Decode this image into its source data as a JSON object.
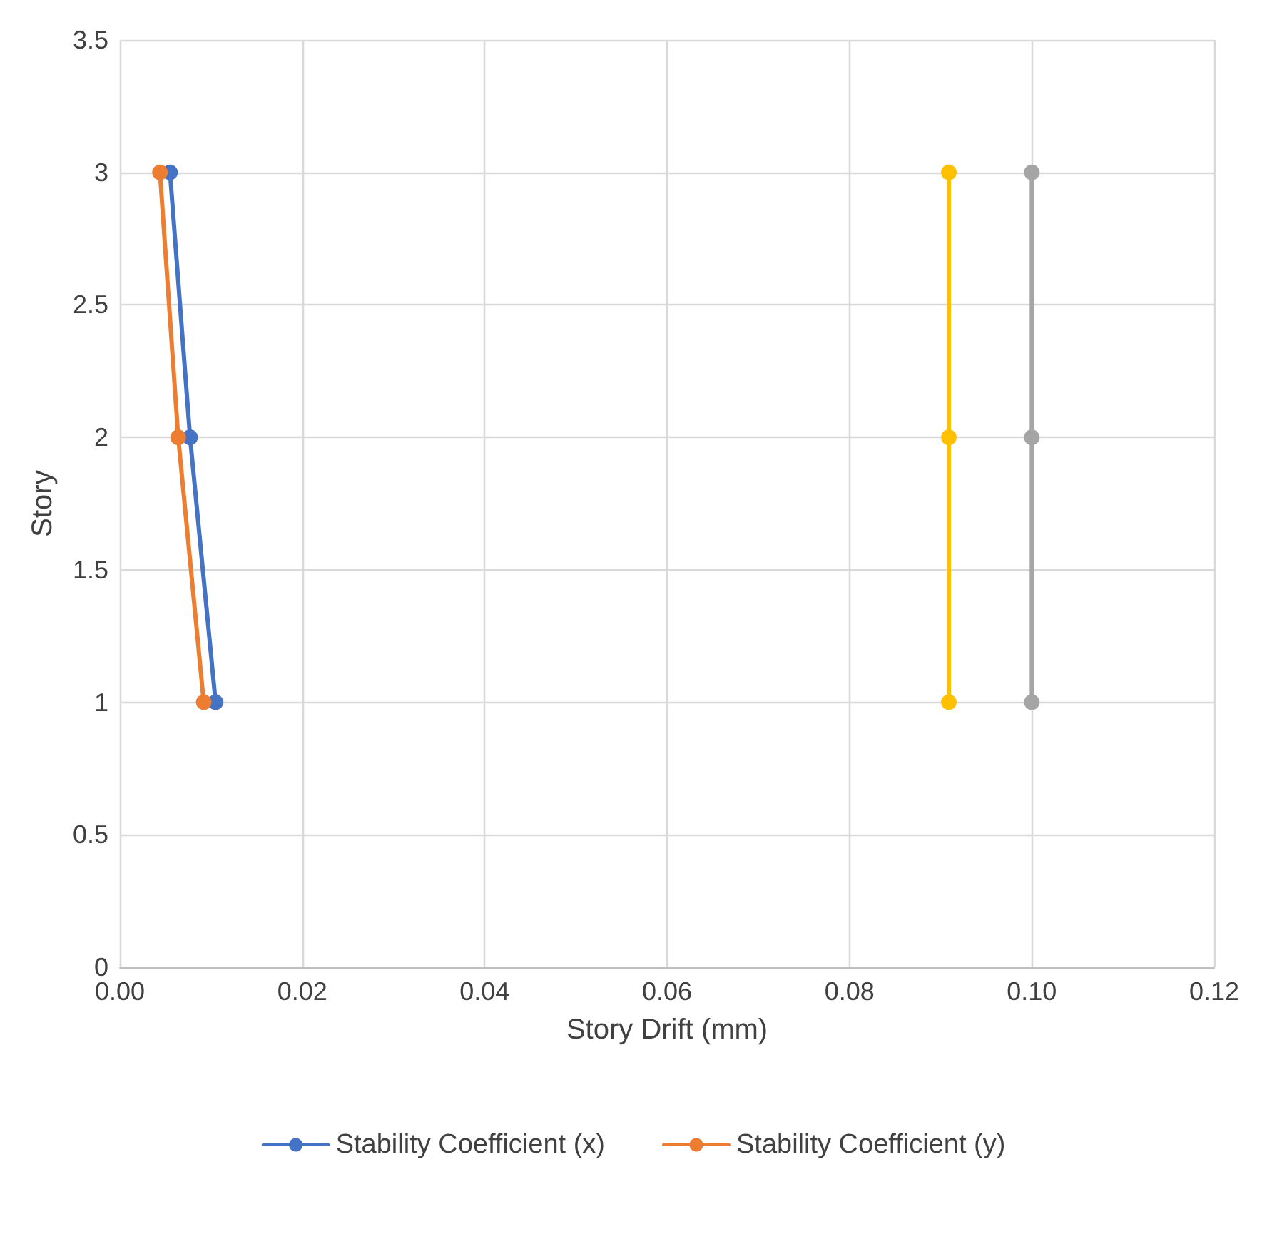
{
  "chart_data": {
    "type": "line",
    "xlabel": "Story Drift (mm)",
    "ylabel": "Story",
    "series": [
      {
        "name": "Stability Coefficient (x)",
        "color": "#4472c4",
        "x": [
          0.0055,
          0.0077,
          0.0105
        ],
        "values": [
          3,
          2,
          1
        ]
      },
      {
        "name": "Stability Coefficient (y)",
        "color": "#ed7d31",
        "x": [
          0.0044,
          0.0064,
          0.0092
        ],
        "values": [
          3,
          2,
          1
        ]
      },
      {
        "color": "#ffc000",
        "x": [
          0.0909,
          0.0909,
          0.0909
        ],
        "values": [
          3,
          2,
          1
        ]
      },
      {
        "color": "#a5a5a5",
        "x": [
          0.1,
          0.1,
          0.1
        ],
        "values": [
          3,
          2,
          1
        ]
      }
    ],
    "xlim": [
      0,
      0.12
    ],
    "xticks": [
      {
        "value": 0,
        "label": "0.00"
      },
      {
        "value": 0.02,
        "label": "0.02"
      },
      {
        "value": 0.04,
        "label": "0.04"
      },
      {
        "value": 0.06,
        "label": "0.06"
      },
      {
        "value": 0.08,
        "label": "0.08"
      },
      {
        "value": 0.1,
        "label": "0.10"
      },
      {
        "value": 0.12,
        "label": "0.12"
      }
    ],
    "ylim": [
      0,
      3.5
    ],
    "yticks": [
      0,
      0.5,
      1,
      1.5,
      2,
      2.5,
      3,
      3.5
    ],
    "grid": true,
    "legend": "bottom",
    "marker": "circle",
    "line_style": "solid"
  }
}
